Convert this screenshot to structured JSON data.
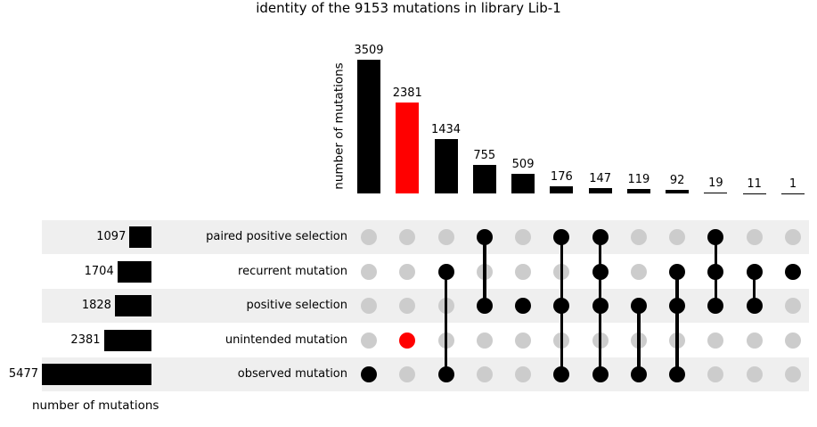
{
  "title": "identity of the 9153 mutations in library Lib-1",
  "axes": {
    "top_ylabel": "number of mutations",
    "bottom_xlabel": "number of mutations"
  },
  "colors": {
    "bar_default": "#000000",
    "bar_highlight": "#ff0000",
    "dot_inactive": "#cccccc",
    "stripe": "#efefef",
    "background": "#ffffff",
    "text": "#000000"
  },
  "chart_data": {
    "type": "upset",
    "title": "identity of the 9153 mutations in library Lib-1",
    "total_mutations_in_title": 9153,
    "set_size_axis_label": "number of mutations",
    "intersection_axis_label": "number of mutations",
    "grid": false,
    "legend": false,
    "intersection_ylim": [
      0,
      3509
    ],
    "set_size_xlim": [
      0,
      5477
    ],
    "sets": [
      {
        "name": "paired positive selection",
        "size": 1097
      },
      {
        "name": "recurrent mutation",
        "size": 1704
      },
      {
        "name": "positive selection",
        "size": 1828
      },
      {
        "name": "unintended mutation",
        "size": 2381
      },
      {
        "name": "observed mutation",
        "size": 5477
      }
    ],
    "intersections": [
      {
        "value": 3509,
        "members": [
          "observed mutation"
        ],
        "highlighted": false
      },
      {
        "value": 2381,
        "members": [
          "unintended mutation"
        ],
        "highlighted": true
      },
      {
        "value": 1434,
        "members": [
          "recurrent mutation",
          "observed mutation"
        ],
        "highlighted": false
      },
      {
        "value": 755,
        "members": [
          "paired positive selection",
          "positive selection"
        ],
        "highlighted": false
      },
      {
        "value": 509,
        "members": [
          "positive selection"
        ],
        "highlighted": false
      },
      {
        "value": 176,
        "members": [
          "paired positive selection",
          "positive selection",
          "observed mutation"
        ],
        "highlighted": false
      },
      {
        "value": 147,
        "members": [
          "paired positive selection",
          "recurrent mutation",
          "positive selection",
          "observed mutation"
        ],
        "highlighted": false
      },
      {
        "value": 119,
        "members": [
          "positive selection",
          "observed mutation"
        ],
        "highlighted": false
      },
      {
        "value": 92,
        "members": [
          "recurrent mutation",
          "positive selection",
          "observed mutation"
        ],
        "highlighted": false
      },
      {
        "value": 19,
        "members": [
          "paired positive selection",
          "recurrent mutation",
          "positive selection"
        ],
        "highlighted": false
      },
      {
        "value": 11,
        "members": [
          "recurrent mutation",
          "positive selection"
        ],
        "highlighted": false
      },
      {
        "value": 1,
        "members": [
          "recurrent mutation"
        ],
        "highlighted": false
      }
    ]
  }
}
